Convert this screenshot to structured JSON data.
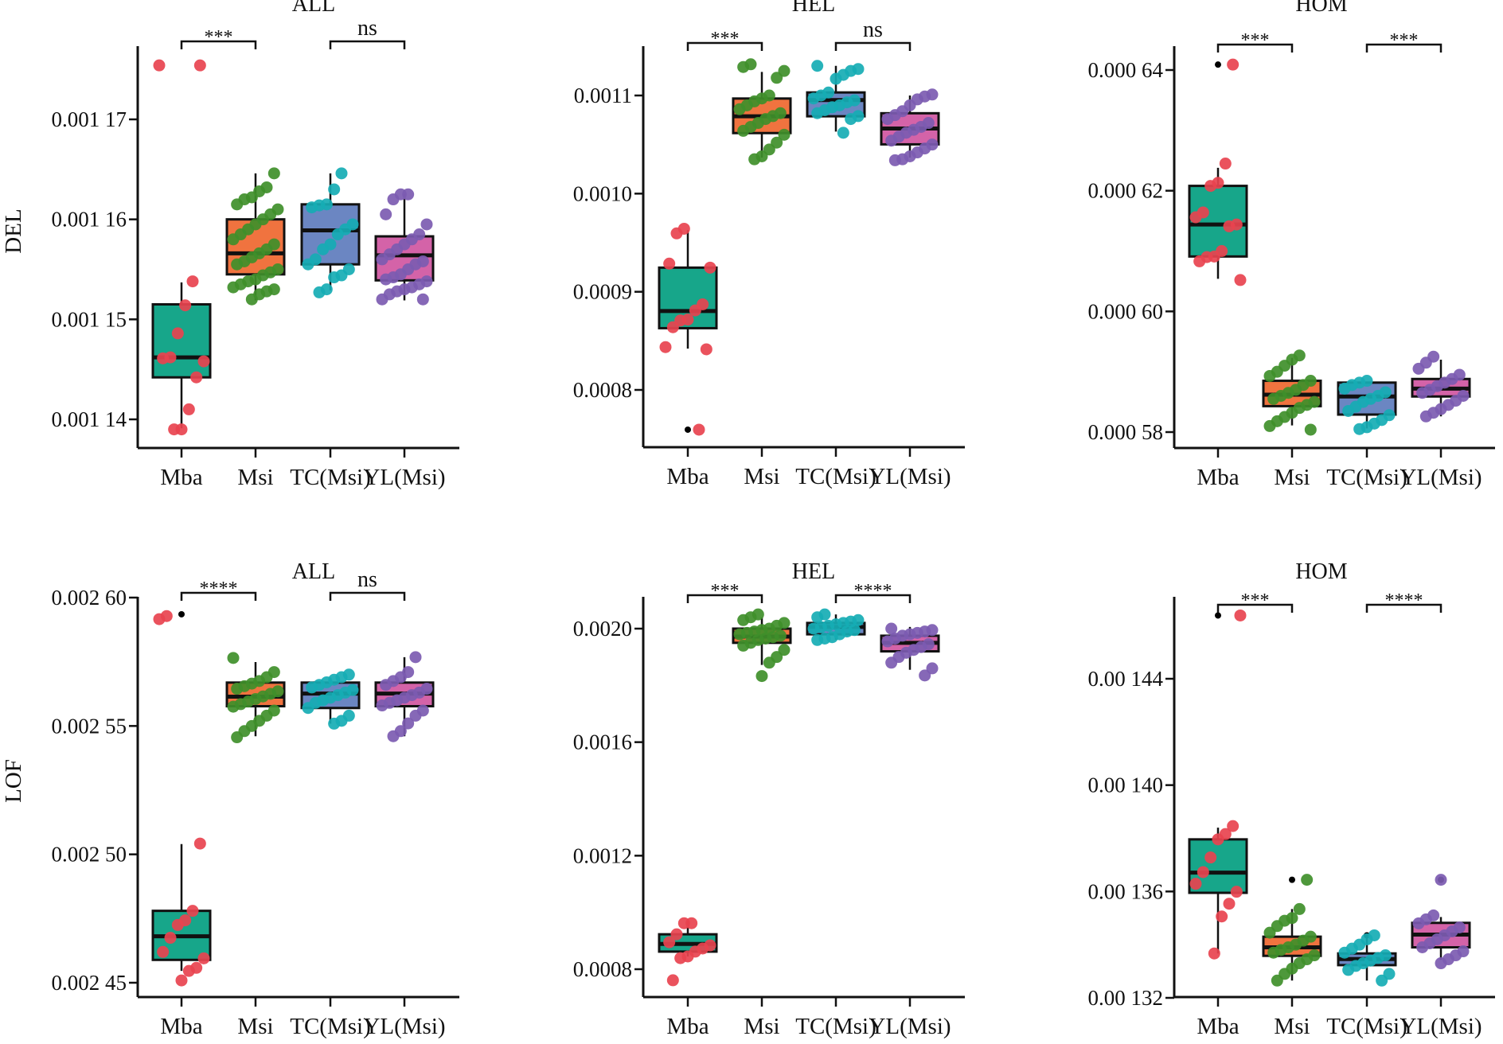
{
  "colors": {
    "box_fill": [
      "#17a68a",
      "#f0733f",
      "#6b86c2",
      "#d463a8"
    ],
    "point": [
      "#e8434f",
      "#3f8f2a",
      "#16adb4",
      "#7c5bb1"
    ],
    "outlier": "#000000",
    "axis": "#111111"
  },
  "chart_data": [
    {
      "type": "box",
      "title": "ALL",
      "ylabel": "DEL",
      "categories": [
        "Mba",
        "Msi",
        "TC(Msi)",
        "YL(Msi)"
      ],
      "ticks": [
        0.00117,
        0.00116,
        0.00115,
        0.00114
      ],
      "tick_labels": [
        "0.001 17",
        "0.001 16",
        "0.001 15",
        "0.001 14"
      ],
      "comparisons": [
        {
          "from": 0,
          "to": 1,
          "label": "***"
        },
        {
          "from": 2,
          "to": 3,
          "label": "ns"
        }
      ],
      "groups": [
        {
          "name": "Mba",
          "box": {
            "min": 0.0011391,
            "q1": 0.0011442,
            "median": 0.0011462,
            "q3": 0.0011515,
            "max": 0.0011537
          },
          "points": [
            0.0011754,
            0.0011754,
            0.0011538,
            0.0011514,
            0.0011486,
            0.0011462,
            0.0011461,
            0.0011458,
            0.0011442,
            0.001141,
            0.001139,
            0.001139
          ],
          "outliers": []
        },
        {
          "name": "Msi",
          "box": {
            "min": 0.0011519,
            "q1": 0.0011545,
            "median": 0.0011566,
            "q3": 0.00116,
            "max": 0.0011646
          },
          "points": [
            0.0011646,
            0.0011632,
            0.0011628,
            0.0011622,
            0.001162,
            0.0011615,
            0.001161,
            0.0011605,
            0.00116,
            0.0011595,
            0.001159,
            0.0011585,
            0.001158,
            0.0011575,
            0.001157,
            0.0011566,
            0.0011562,
            0.0011558,
            0.0011555,
            0.001155,
            0.0011547,
            0.0011544,
            0.001154,
            0.0011538,
            0.0011535,
            0.0011532,
            0.001153,
            0.0011528,
            0.0011525,
            0.001152
          ],
          "outliers": []
        },
        {
          "name": "TC(Msi)",
          "box": {
            "min": 0.0011529,
            "q1": 0.0011555,
            "median": 0.0011589,
            "q3": 0.0011615,
            "max": 0.0011646
          },
          "points": [
            0.0011646,
            0.001163,
            0.0011615,
            0.0011614,
            0.0011612,
            0.0011595,
            0.001159,
            0.0011585,
            0.0011575,
            0.001157,
            0.001156,
            0.0011555,
            0.001155,
            0.0011544,
            0.0011542,
            0.001153,
            0.0011527
          ],
          "outliers": []
        },
        {
          "name": "YL(Msi)",
          "box": {
            "min": 0.0011519,
            "q1": 0.0011539,
            "median": 0.0011564,
            "q3": 0.0011583,
            "max": 0.0011625
          },
          "points": [
            0.0011625,
            0.0011625,
            0.001162,
            0.0011605,
            0.0011595,
            0.0011585,
            0.001158,
            0.0011575,
            0.001157,
            0.0011565,
            0.001156,
            0.0011558,
            0.0011555,
            0.001155,
            0.0011545,
            0.0011542,
            0.001154,
            0.0011538,
            0.0011535,
            0.0011532,
            0.001153,
            0.0011528,
            0.0011525,
            0.001152,
            0.001152
          ],
          "outliers": []
        }
      ]
    },
    {
      "type": "box",
      "title": "HEL",
      "ylabel": "",
      "categories": [
        "Mba",
        "Msi",
        "TC(Msi)",
        "YL(Msi)"
      ],
      "ticks": [
        0.0011,
        0.001,
        0.0009,
        0.0008
      ],
      "tick_labels": [
        "0.0011",
        "0.0010",
        "0.0009",
        "0.0008"
      ],
      "comparisons": [
        {
          "from": 0,
          "to": 1,
          "label": "***"
        },
        {
          "from": 2,
          "to": 3,
          "label": "ns"
        }
      ],
      "groups": [
        {
          "name": "Mba",
          "box": {
            "min": 0.0008421,
            "q1": 0.0008629,
            "median": 0.0008804,
            "q3": 0.0009246,
            "max": 0.0009629
          },
          "points": [
            0.0009642,
            0.0009595,
            0.0009287,
            0.0009246,
            0.0008872,
            0.000881,
            0.0008717,
            0.0008707,
            0.0008639,
            0.0008436,
            0.0008414,
            0.0007595
          ],
          "outliers": [
            0.0007595
          ]
        },
        {
          "name": "Msi",
          "box": {
            "min": 0.0010368,
            "q1": 0.0010617,
            "median": 0.0010788,
            "q3": 0.0010969,
            "max": 0.001124
          },
          "points": [
            0.0011318,
            0.001129,
            0.001125,
            0.001118,
            0.0011,
            0.001097,
            0.001094,
            0.00109,
            0.001086,
            0.001082,
            0.001079,
            0.001076,
            0.001072,
            0.001068,
            0.001064,
            0.00106,
            0.001052,
            0.001045,
            0.001038,
            0.001035
          ],
          "outliers": []
        },
        {
          "name": "TC(Msi)",
          "box": {
            "min": 0.0010632,
            "q1": 0.0010788,
            "median": 0.0010953,
            "q3": 0.0011031,
            "max": 0.0011302
          },
          "points": [
            0.0011302,
            0.001127,
            0.001125,
            0.001121,
            0.001117,
            0.001103,
            0.0011,
            0.001097,
            0.001095,
            0.001093,
            0.00109,
            0.001088,
            0.001085,
            0.001082,
            0.001079,
            0.001076,
            0.001062
          ],
          "outliers": []
        },
        {
          "name": "YL(Msi)",
          "box": {
            "min": 0.0010368,
            "q1": 0.0010502,
            "median": 0.0010664,
            "q3": 0.0010819,
            "max": 0.0011
          },
          "points": [
            0.001101,
            0.001099,
            0.001096,
            0.00109,
            0.001084,
            0.00108,
            0.001076,
            0.001072,
            0.001068,
            0.001065,
            0.001062,
            0.001058,
            0.001054,
            0.00105,
            0.001046,
            0.001042,
            0.001038,
            0.001035,
            0.001034
          ],
          "outliers": []
        }
      ]
    },
    {
      "type": "box",
      "title": "HOM",
      "ylabel": "",
      "categories": [
        "Mba",
        "Msi",
        "TC(Msi)",
        "YL(Msi)"
      ],
      "ticks": [
        0.00064,
        0.00062,
        0.0006,
        0.00058
      ],
      "tick_labels": [
        "0.000 64",
        "0.000 62",
        "0.000 60",
        "0.000 58"
      ],
      "comparisons": [
        {
          "from": 0,
          "to": 1,
          "label": "***"
        },
        {
          "from": 2,
          "to": 3,
          "label": "***"
        }
      ],
      "groups": [
        {
          "name": "Mba",
          "box": {
            "min": 0.0006054,
            "q1": 0.0006091,
            "median": 0.0006144,
            "q3": 0.0006208,
            "max": 0.0006238
          },
          "points": [
            0.0006409,
            0.0006245,
            0.0006213,
            0.0006208,
            0.0006164,
            0.0006156,
            0.0006144,
            0.0006141,
            0.00061,
            0.0006091,
            0.000609,
            0.0006083,
            0.0006052
          ],
          "outliers": [
            0.0006409
          ]
        },
        {
          "name": "Msi",
          "box": {
            "min": 0.0005811,
            "q1": 0.0005843,
            "median": 0.0005862,
            "q3": 0.0005885,
            "max": 0.0005923
          },
          "points": [
            0.0005927,
            0.000592,
            0.000591,
            0.00059,
            0.0005893,
            0.0005885,
            0.0005878,
            0.000587,
            0.0005865,
            0.000586,
            0.0005855,
            0.000585,
            0.0005845,
            0.000584,
            0.0005832,
            0.0005825,
            0.0005818,
            0.000581,
            0.0005804
          ],
          "outliers": []
        },
        {
          "name": "TC(Msi)",
          "box": {
            "min": 0.0005806,
            "q1": 0.0005829,
            "median": 0.0005859,
            "q3": 0.0005882,
            "max": 0.0005882
          },
          "points": [
            0.0005885,
            0.0005882,
            0.0005878,
            0.0005872,
            0.0005866,
            0.000586,
            0.0005855,
            0.000585,
            0.0005842,
            0.0005835,
            0.0005828,
            0.000582,
            0.0005814,
            0.0005808,
            0.0005805
          ],
          "outliers": []
        },
        {
          "name": "YL(Msi)",
          "box": {
            "min": 0.0005826,
            "q1": 0.0005859,
            "median": 0.0005872,
            "q3": 0.0005888,
            "max": 0.000592
          },
          "points": [
            0.0005925,
            0.0005915,
            0.0005905,
            0.0005895,
            0.0005888,
            0.0005882,
            0.0005876,
            0.000587,
            0.0005865,
            0.000586,
            0.0005852,
            0.0005845,
            0.0005838,
            0.0005832,
            0.0005826
          ],
          "outliers": []
        }
      ]
    },
    {
      "type": "box",
      "title": "ALL",
      "ylabel": "LOF",
      "categories": [
        "Mba",
        "Msi",
        "TC(Msi)",
        "YL(Msi)"
      ],
      "ticks": [
        0.0026,
        0.00255,
        0.0025,
        0.00245
      ],
      "tick_labels": [
        "0.002 60",
        "0.002 55",
        "0.002 50",
        "0.002 45"
      ],
      "comparisons": [
        {
          "from": 0,
          "to": 1,
          "label": "****"
        },
        {
          "from": 2,
          "to": 3,
          "label": "ns"
        }
      ],
      "groups": [
        {
          "name": "Mba",
          "box": {
            "min": 0.0024546,
            "q1": 0.0024589,
            "median": 0.0024681,
            "q3": 0.002478,
            "max": 0.002504
          },
          "points": [
            0.0025928,
            0.0025916,
            0.0025042,
            0.002478,
            0.0024743,
            0.0024725,
            0.0024675,
            0.002462,
            0.0024595,
            0.0024558,
            0.0024546,
            0.0024509
          ],
          "outliers": [
            0.0025935
          ]
        },
        {
          "name": "Msi",
          "box": {
            "min": 0.002546,
            "q1": 0.0025577,
            "median": 0.0025614,
            "q3": 0.0025669,
            "max": 0.0025749
          },
          "points": [
            0.0025765,
            0.002571,
            0.002569,
            0.0025675,
            0.0025665,
            0.0025655,
            0.0025645,
            0.0025635,
            0.0025625,
            0.0025615,
            0.0025605,
            0.0025595,
            0.0025585,
            0.0025575,
            0.002556,
            0.002554,
            0.002552,
            0.00255,
            0.002548,
            0.0025456
          ],
          "outliers": []
        },
        {
          "name": "TC(Msi)",
          "box": {
            "min": 0.0025509,
            "q1": 0.002557,
            "median": 0.0025626,
            "q3": 0.0025669,
            "max": 0.0025688
          },
          "points": [
            0.00257,
            0.002569,
            0.002568,
            0.002567,
            0.002566,
            0.002565,
            0.002564,
            0.002563,
            0.002562,
            0.002561,
            0.00256,
            0.002559,
            0.002557,
            0.002554,
            0.002552,
            0.0025509
          ],
          "outliers": []
        },
        {
          "name": "YL(Msi)",
          "box": {
            "min": 0.002546,
            "q1": 0.0025577,
            "median": 0.0025626,
            "q3": 0.0025669,
            "max": 0.0025768
          },
          "points": [
            0.0025768,
            0.002571,
            0.002569,
            0.0025675,
            0.002566,
            0.0025645,
            0.002563,
            0.002562,
            0.002561,
            0.00256,
            0.002559,
            0.002558,
            0.002556,
            0.002554,
            0.002551,
            0.002548,
            0.002546
          ],
          "outliers": []
        }
      ]
    },
    {
      "type": "box",
      "title": "HEL",
      "ylabel": "",
      "categories": [
        "Mba",
        "Msi",
        "TC(Msi)",
        "YL(Msi)"
      ],
      "ticks": [
        0.002,
        0.0016,
        0.0012,
        0.0008
      ],
      "tick_labels": [
        "0.0020",
        "0.0016",
        "0.0012",
        "0.0008"
      ],
      "comparisons": [
        {
          "from": 0,
          "to": 1,
          "label": "***"
        },
        {
          "from": 2,
          "to": 3,
          "label": "****"
        }
      ],
      "groups": [
        {
          "name": "Mba",
          "box": {
            "min": 0.000845,
            "q1": 0.000862,
            "median": 0.000889,
            "q3": 0.000923,
            "max": 0.000968
          },
          "points": [
            0.000962,
            0.000962,
            0.000923,
            0.000895,
            0.000884,
            0.000873,
            0.000862,
            0.000845,
            0.000839,
            0.000761
          ],
          "outliers": []
        },
        {
          "name": "Msi",
          "box": {
            "min": 0.001872,
            "q1": 0.00195,
            "median": 0.001972,
            "q3": 0.002,
            "max": 0.002039
          },
          "points": [
            0.00205,
            0.00204,
            0.00203,
            0.00202,
            0.00201,
            0.002,
            0.001995,
            0.00199,
            0.001985,
            0.00198,
            0.001975,
            0.00197,
            0.001965,
            0.00196,
            0.00195,
            0.00194,
            0.001925,
            0.0019,
            0.00188,
            0.001833
          ],
          "outliers": []
        },
        {
          "name": "TC(Msi)",
          "box": {
            "min": 0.001961,
            "q1": 0.00198,
            "median": 0.002006,
            "q3": 0.00202,
            "max": 0.00205
          },
          "points": [
            0.00205,
            0.00204,
            0.00203,
            0.002025,
            0.00202,
            0.002015,
            0.00201,
            0.002005,
            0.002,
            0.001995,
            0.00199,
            0.00198,
            0.00197,
            0.001965,
            0.00196
          ],
          "outliers": []
        },
        {
          "name": "YL(Msi)",
          "box": {
            "min": 0.001855,
            "q1": 0.00192,
            "median": 0.00195,
            "q3": 0.001975,
            "max": 0.002006
          },
          "points": [
            0.002,
            0.001995,
            0.00199,
            0.001985,
            0.00198,
            0.001975,
            0.001965,
            0.001955,
            0.001945,
            0.001935,
            0.001925,
            0.001915,
            0.0019,
            0.00188,
            0.00186,
            0.001835
          ],
          "outliers": []
        }
      ]
    },
    {
      "type": "box",
      "title": "HOM",
      "ylabel": "",
      "categories": [
        "Mba",
        "Msi",
        "TC(Msi)",
        "YL(Msi)"
      ],
      "ticks": [
        0.00144,
        0.0014,
        0.00136,
        0.00132
      ],
      "tick_labels": [
        "0.00 144",
        "0.00 140",
        "0.00 136",
        "0.00 132"
      ],
      "comparisons": [
        {
          "from": 0,
          "to": 1,
          "label": "***"
        },
        {
          "from": 2,
          "to": 3,
          "label": "****"
        }
      ],
      "groups": [
        {
          "name": "Mba",
          "box": {
            "min": 0.0013367,
            "q1": 0.0013595,
            "median": 0.0013671,
            "q3": 0.0013796,
            "max": 0.001384
          },
          "points": [
            0.0014638,
            0.0013846,
            0.0013816,
            0.0013796,
            0.0013728,
            0.0013673,
            0.0013629,
            0.0013599,
            0.0013554,
            0.0013506,
            0.0013367
          ],
          "outliers": [
            0.0014638
          ]
        },
        {
          "name": "Msi",
          "box": {
            "min": 0.0013265,
            "q1": 0.0013358,
            "median": 0.001339,
            "q3": 0.001343,
            "max": 0.0013534
          },
          "points": [
            0.0013644,
            0.0013534,
            0.00135,
            0.001349,
            0.001347,
            0.0013445,
            0.001343,
            0.0013415,
            0.00134,
            0.001339,
            0.001338,
            0.001337,
            0.001336,
            0.0013345,
            0.001333,
            0.001331,
            0.001329,
            0.0013265
          ],
          "outliers": [
            0.0013644
          ]
        },
        {
          "name": "TC(Msi)",
          "box": {
            "min": 0.0013265,
            "q1": 0.0013323,
            "median": 0.0013346,
            "q3": 0.0013367,
            "max": 0.0013435
          },
          "points": [
            0.0013435,
            0.001342,
            0.00134,
            0.0013385,
            0.001337,
            0.001336,
            0.001335,
            0.001334,
            0.001333,
            0.001332,
            0.0013305,
            0.001329,
            0.0013265
          ],
          "outliers": [
            0.0013435
          ]
        },
        {
          "name": "YL(Msi)",
          "box": {
            "min": 0.0013343,
            "q1": 0.001339,
            "median": 0.0013438,
            "q3": 0.0013482,
            "max": 0.0013504
          },
          "points": [
            0.0013644,
            0.001351,
            0.0013495,
            0.001348,
            0.0013465,
            0.001345,
            0.0013435,
            0.001342,
            0.0013405,
            0.001339,
            0.0013375,
            0.001336,
            0.0013345,
            0.001333
          ],
          "outliers": [
            0.0013644
          ]
        }
      ]
    }
  ]
}
